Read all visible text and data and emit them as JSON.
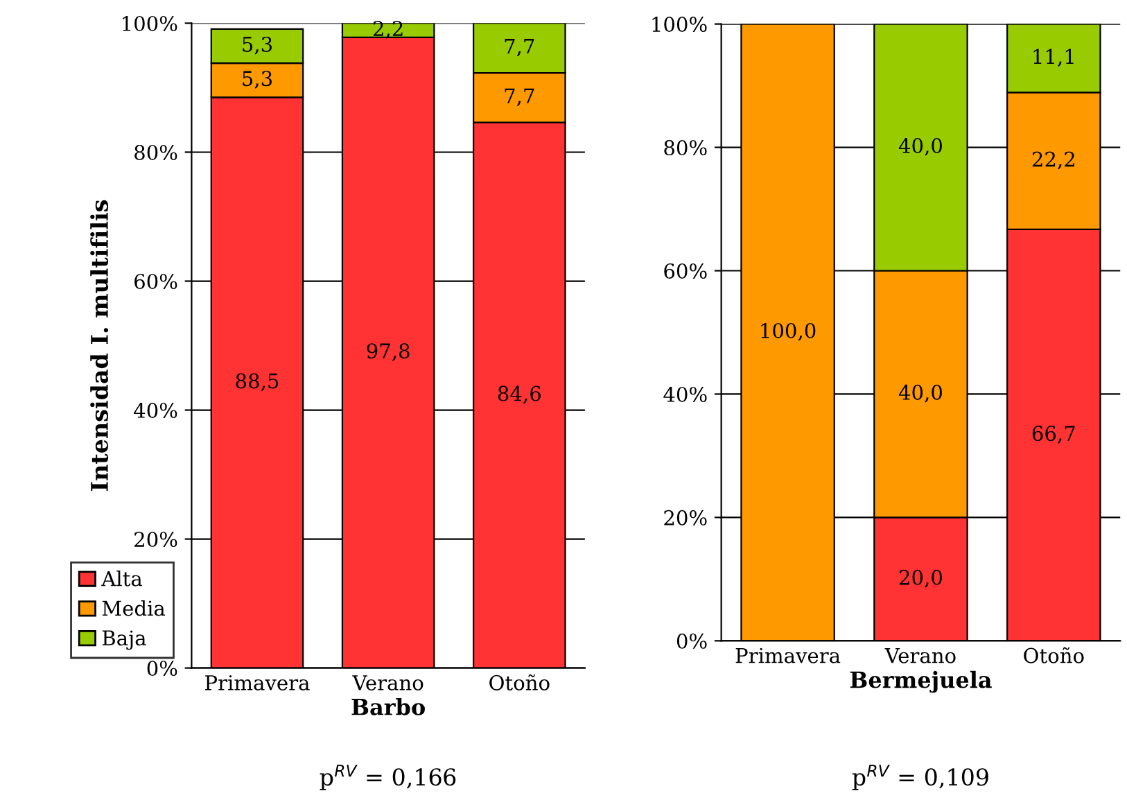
{
  "chart_data": [
    {
      "type": "bar",
      "stacked": true,
      "xlabel": "Barbo",
      "ylabel": "Intensidad I. multifilis",
      "categories": [
        "Primavera",
        "Verano",
        "Otoño"
      ],
      "series": [
        {
          "name": "Alta",
          "color": "#ff3333",
          "values": [
            88.5,
            97.8,
            84.6
          ],
          "value_labels": [
            "88,5",
            "97,8",
            "84,6"
          ]
        },
        {
          "name": "Media",
          "color": "#ff9900",
          "values": [
            5.3,
            null,
            7.7
          ],
          "value_labels": [
            "5,3",
            null,
            "7,7"
          ]
        },
        {
          "name": "Baja",
          "color": "#99cc00",
          "values": [
            5.3,
            2.2,
            7.7
          ],
          "value_labels": [
            "5,3",
            "2,2",
            "7,7"
          ]
        }
      ],
      "ylim": [
        0,
        100
      ],
      "yticks": [
        {
          "value": 0,
          "label": "0%"
        },
        {
          "value": 20,
          "label": "20%"
        },
        {
          "value": 40,
          "label": "40%"
        },
        {
          "value": 60,
          "label": "60%"
        },
        {
          "value": 80,
          "label": "80%"
        },
        {
          "value": 100,
          "label": "100%"
        }
      ],
      "grid": "y",
      "legend": "bottom left",
      "annotations": [
        "p$^{RV}$ = 0,166"
      ]
    },
    {
      "type": "bar",
      "stacked": true,
      "xlabel": "Bermejuela",
      "categories": [
        "Primavera",
        "Verano",
        "Otoño"
      ],
      "series": [
        {
          "color": "#ff3333",
          "values": [
            null,
            20.0,
            66.7
          ],
          "value_labels": [
            null,
            "20,0",
            "66,7"
          ]
        },
        {
          "color": "#ff9900",
          "values": [
            100.0,
            40.0,
            22.2
          ],
          "value_labels": [
            "100,0",
            "40,0",
            "22,2"
          ]
        },
        {
          "color": "#99cc00",
          "values": [
            null,
            40.0,
            11.1
          ],
          "value_labels": [
            null,
            "40,0",
            "11,1"
          ]
        }
      ],
      "ylim": [
        0,
        100
      ],
      "yticks": [
        {
          "value": 0,
          "label": "0%"
        },
        {
          "value": 20,
          "label": "20%"
        },
        {
          "value": 40,
          "label": "40%"
        },
        {
          "value": 60,
          "label": "60%"
        },
        {
          "value": 80,
          "label": "80%"
        },
        {
          "value": 100,
          "label": "100%"
        }
      ],
      "grid": "y",
      "annotations": [
        "p$^{RV}$ = 0,109"
      ]
    }
  ]
}
